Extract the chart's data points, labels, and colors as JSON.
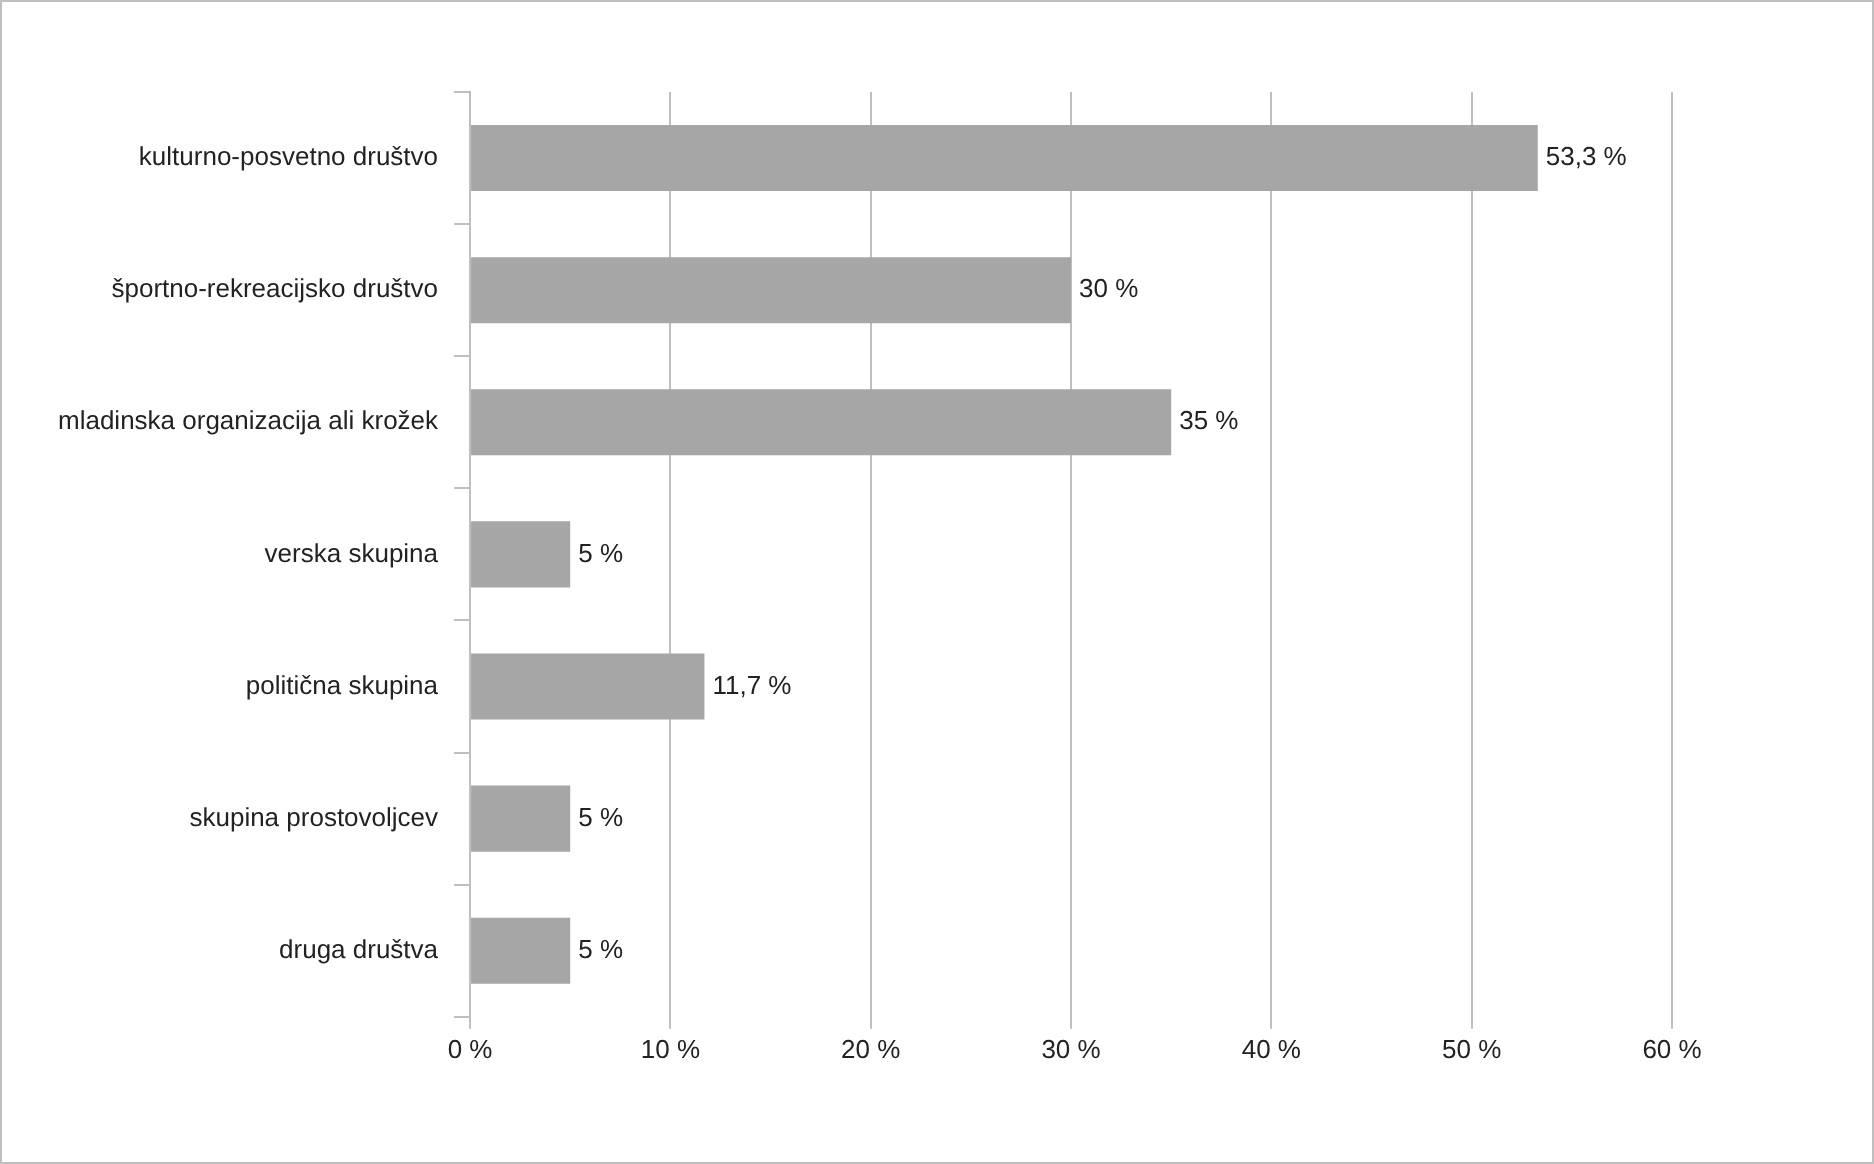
{
  "chart_data": {
    "type": "bar",
    "orientation": "horizontal",
    "categories": [
      "kulturno-posvetno društvo",
      "športno-rekreacijsko društvo",
      "mladinska organizacija ali krožek",
      "verska skupina",
      "politična skupina",
      "skupina prostovoljcev",
      "druga društva"
    ],
    "values": [
      53.3,
      30,
      35,
      5,
      11.7,
      5,
      5
    ],
    "value_labels": [
      "53,3 %",
      "30 %",
      "35 %",
      "5 %",
      "11,7 %",
      "5 %",
      "5 %"
    ],
    "color": "#a6a6a6",
    "xlim": [
      0,
      60
    ],
    "xticks": [
      {
        "value": 0,
        "label": "0 %"
      },
      {
        "value": 10,
        "label": "10 %"
      },
      {
        "value": 20,
        "label": "20 %"
      },
      {
        "value": 30,
        "label": "30 %"
      },
      {
        "value": 40,
        "label": "40 %"
      },
      {
        "value": 50,
        "label": "50 %"
      },
      {
        "value": 60,
        "label": "60 %"
      }
    ],
    "grid": "x",
    "legend": false
  }
}
